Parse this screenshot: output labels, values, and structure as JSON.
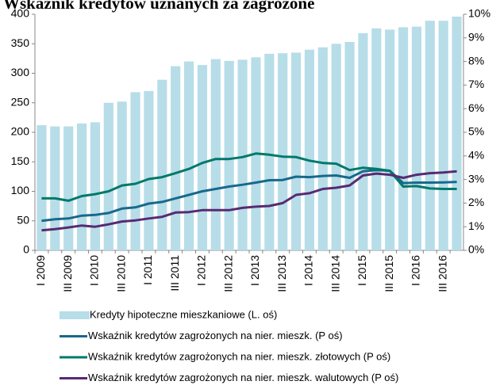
{
  "chart_data": {
    "type": "bar",
    "title": "Wskaźnik kredytów uznanych za zagrożone",
    "categories": [
      "I 2009",
      null,
      "III 2009",
      null,
      "I 2010",
      null,
      "III 2010",
      null,
      "I 2011",
      null,
      "III 2011",
      null,
      "I 2012",
      null,
      "III 2012",
      null,
      "I 2013",
      null,
      "III 2013",
      null,
      "I 2014",
      null,
      "III 2014",
      null,
      "I 2015",
      null,
      "III 2015",
      null,
      "I 2016",
      null,
      "III 2016",
      null
    ],
    "series": [
      {
        "name": "Kredyty hipoteczne mieszkaniowe (L. oś)",
        "type": "bar",
        "color": "#b7dde8",
        "values": [
          212,
          210,
          210,
          215,
          217,
          250,
          252,
          268,
          270,
          289,
          312,
          320,
          314,
          324,
          321,
          323,
          327,
          333,
          334,
          335,
          340,
          344,
          350,
          353,
          368,
          376,
          374,
          378,
          379,
          389,
          389,
          396
        ]
      },
      {
        "name": "Wskaźnik kredytów zagrożonych na nier. mieszk. (P oś)",
        "type": "line",
        "axis": "y2",
        "color": "#17698c",
        "values": [
          1.25,
          1.32,
          1.35,
          1.47,
          1.5,
          1.58,
          1.77,
          1.82,
          1.98,
          2.05,
          2.2,
          2.35,
          2.5,
          2.6,
          2.7,
          2.78,
          2.87,
          2.97,
          2.98,
          3.12,
          3.1,
          3.15,
          3.17,
          3.07,
          3.35,
          3.4,
          3.37,
          2.85,
          2.87,
          2.87,
          2.88,
          2.9
        ]
      },
      {
        "name": "Wskaźnik kredytów zagrożonych na nier. mieszk. złotowych (P oś)",
        "type": "line",
        "axis": "y2",
        "color": "#00786a",
        "values": [
          2.2,
          2.2,
          2.1,
          2.3,
          2.38,
          2.5,
          2.75,
          2.82,
          3.02,
          3.1,
          3.27,
          3.45,
          3.7,
          3.87,
          3.87,
          3.95,
          4.1,
          4.05,
          3.97,
          3.95,
          3.8,
          3.7,
          3.67,
          3.4,
          3.5,
          3.45,
          3.37,
          2.7,
          2.72,
          2.62,
          2.6,
          2.6
        ]
      },
      {
        "name": "Wskaźnik kredytów zagrożonych na nier. mieszk. walutowych (P oś)",
        "type": "line",
        "axis": "y2",
        "color": "#582a72",
        "values": [
          0.85,
          0.9,
          0.97,
          1.05,
          1.0,
          1.1,
          1.22,
          1.27,
          1.35,
          1.42,
          1.6,
          1.62,
          1.7,
          1.7,
          1.7,
          1.8,
          1.85,
          1.88,
          2.0,
          2.35,
          2.42,
          2.6,
          2.65,
          2.75,
          3.17,
          3.25,
          3.2,
          3.07,
          3.2,
          3.27,
          3.3,
          3.35
        ]
      }
    ],
    "ylim": [
      0,
      400
    ],
    "yticks": [
      0,
      50,
      100,
      150,
      200,
      250,
      300,
      350,
      400
    ],
    "y2lim": [
      0,
      10
    ],
    "y2ticks": [
      {
        "value": 0,
        "label": "0%"
      },
      {
        "value": 1,
        "label": "1%"
      },
      {
        "value": 2,
        "label": "2%"
      },
      {
        "value": 3,
        "label": "3%"
      },
      {
        "value": 4,
        "label": "4%"
      },
      {
        "value": 5,
        "label": "5%"
      },
      {
        "value": 6,
        "label": "6%"
      },
      {
        "value": 7,
        "label": "7%"
      },
      {
        "value": 8,
        "label": "8%"
      },
      {
        "value": 9,
        "label": "9%"
      },
      {
        "value": 10,
        "label": "10%"
      }
    ],
    "grid": false,
    "legend": "bottom"
  }
}
